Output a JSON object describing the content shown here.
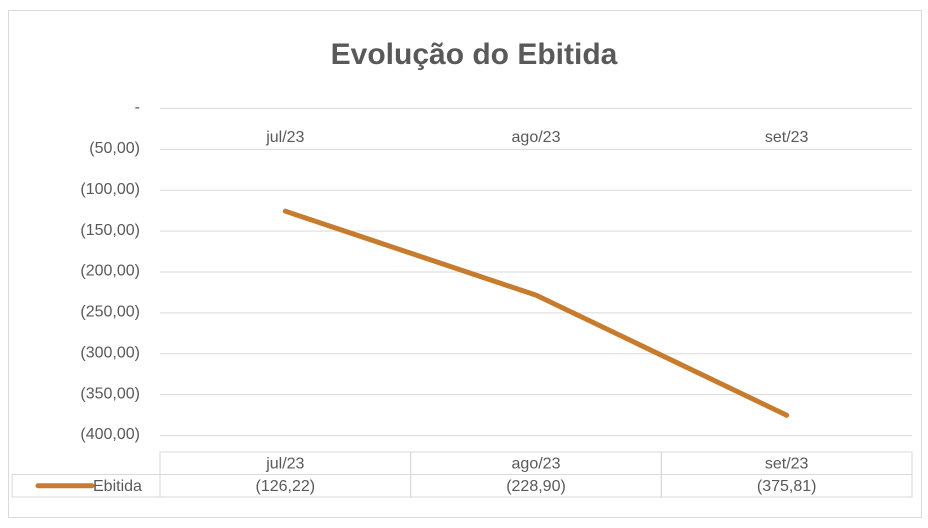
{
  "chart_data": {
    "type": "line",
    "title": "Evolução do Ebitida",
    "categories": [
      "jul/23",
      "ago/23",
      "set/23"
    ],
    "series": [
      {
        "name": "Ebitida",
        "color": "#c77b2d",
        "values": [
          -126.22,
          -228.9,
          -375.81
        ],
        "value_labels": [
          "(126,22)",
          "(228,90)",
          "(375,81)"
        ]
      }
    ],
    "ylim": [
      -400,
      0
    ],
    "yticks": [
      {
        "value": 0,
        "label": "-"
      },
      {
        "value": -50,
        "label": "(50,00)"
      },
      {
        "value": -100,
        "label": "(100,00)"
      },
      {
        "value": -150,
        "label": "(150,00)"
      },
      {
        "value": -200,
        "label": "(200,00)"
      },
      {
        "value": -250,
        "label": "(250,00)"
      },
      {
        "value": -300,
        "label": "(300,00)"
      },
      {
        "value": -350,
        "label": "(350,00)"
      },
      {
        "value": -400,
        "label": "(400,00)"
      }
    ],
    "grid": true,
    "data_table": true
  }
}
